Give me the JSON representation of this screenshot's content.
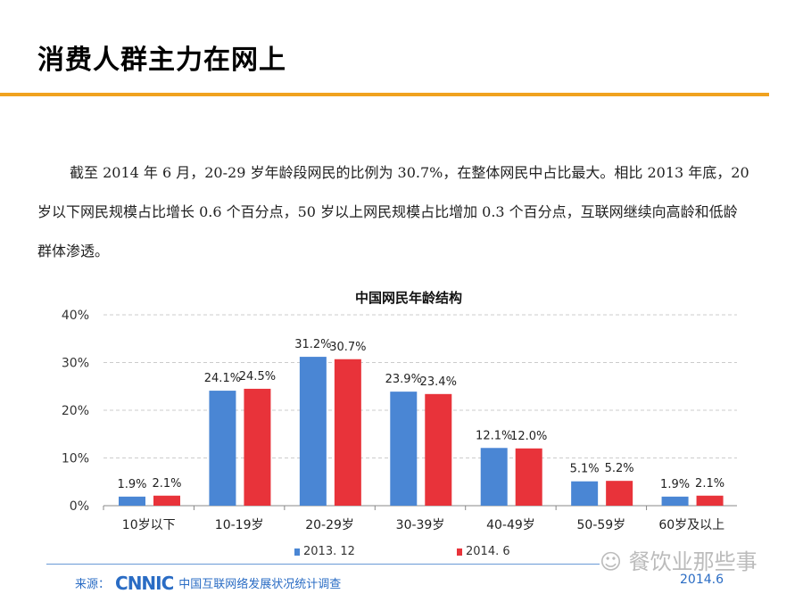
{
  "slide": {
    "title": "消费人群主力在网上",
    "paragraph": "截至 2014 年 6 月，20-29 岁年龄段网民的比例为 30.7%，在整体网民中占比最大。相比 2013 年底，20 岁以下网民规模占比增长 0.6 个百分点，50 岁以上网民规模占比增加 0.3 个百分点，互联网继续向高龄和低龄群体渗透。",
    "source_label": "来源：",
    "source_logo": "CNNIC",
    "source_text": "中国互联网络发展状况统计调查",
    "date": "2014.6",
    "watermark": "餐饮业那些事"
  },
  "chart_data": {
    "type": "bar",
    "title": "中国网民年龄结构",
    "categories": [
      "10岁以下",
      "10-19岁",
      "20-29岁",
      "30-39岁",
      "40-49岁",
      "50-59岁",
      "60岁及以上"
    ],
    "series": [
      {
        "name": "2013. 12",
        "color": "#4a86d4",
        "values": [
          1.9,
          24.1,
          31.2,
          23.9,
          12.1,
          5.1,
          1.9
        ]
      },
      {
        "name": "2014. 6",
        "color": "#e8333a",
        "values": [
          2.1,
          24.5,
          30.7,
          23.4,
          12.0,
          5.2,
          2.1
        ]
      }
    ],
    "value_labels": [
      [
        "1.9%",
        "24.1%",
        "31.2%",
        "23.9%",
        "12.1%",
        "5.1%",
        "1.9%"
      ],
      [
        "2.1%",
        "24.5%",
        "30.7%",
        "23.4%",
        "12.0%",
        "5.2%",
        "2.1%"
      ]
    ],
    "yticks": [
      "0%",
      "10%",
      "20%",
      "30%",
      "40%"
    ],
    "ylim": [
      0,
      40
    ],
    "grid": true,
    "legend": "bottom"
  }
}
